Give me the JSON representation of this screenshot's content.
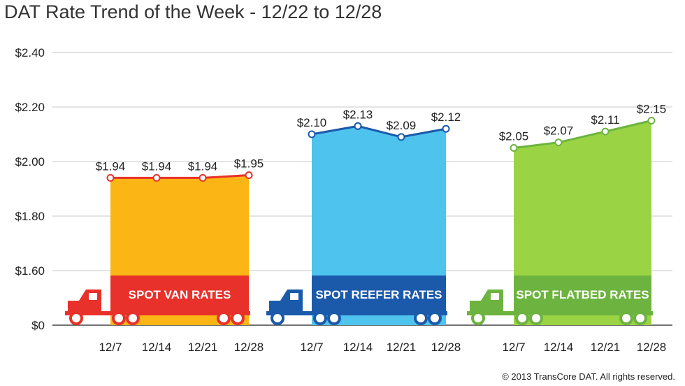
{
  "title": "DAT Rate Trend of the Week - 12/22 to 12/28",
  "copyright": "© 2013 TransCore DAT. All rights reserved.",
  "chart_data": {
    "type": "area",
    "y_tick_labels": [
      "$0",
      "$1.60",
      "$1.80",
      "$2.00",
      "$2.20",
      "$2.40"
    ],
    "y_ticks": [
      0,
      1.6,
      1.8,
      2.0,
      2.2,
      2.4
    ],
    "axis_break": [
      0,
      1.6
    ],
    "ylim": [
      0,
      2.4
    ],
    "grid": true,
    "panels": [
      {
        "banner": "SPOT VAN RATES",
        "color": "#FBB514",
        "line_color": "#E8312A",
        "truck_color": "#E8312A",
        "categories": [
          "12/7",
          "12/14",
          "12/21",
          "12/28"
        ],
        "values": [
          1.94,
          1.94,
          1.94,
          1.95
        ],
        "data_labels": [
          "$1.94",
          "$1.94",
          "$1.94",
          "$1.95"
        ]
      },
      {
        "banner": "SPOT REEFER RATES",
        "color": "#4EC3EE",
        "line_color": "#1B5AAA",
        "truck_color": "#1B5AAA",
        "categories": [
          "12/7",
          "12/14",
          "12/21",
          "12/28"
        ],
        "values": [
          2.1,
          2.13,
          2.09,
          2.12
        ],
        "data_labels": [
          "$2.10",
          "$2.13",
          "$2.09",
          "$2.12"
        ]
      },
      {
        "banner": "SPOT FLATBED RATES",
        "color": "#9AD444",
        "line_color": "#6DB33F",
        "truck_color": "#6DB33F",
        "categories": [
          "12/7",
          "12/14",
          "12/21",
          "12/28"
        ],
        "values": [
          2.05,
          2.07,
          2.11,
          2.15
        ],
        "data_labels": [
          "$2.05",
          "$2.07",
          "$2.11",
          "$2.15"
        ]
      }
    ]
  }
}
